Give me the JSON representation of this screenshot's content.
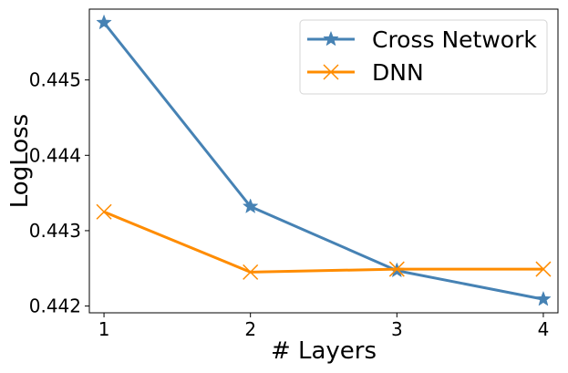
{
  "chart_data": {
    "type": "line",
    "title": "",
    "xlabel": "# Layers",
    "ylabel": "LogLoss",
    "x": [
      1,
      2,
      3,
      4
    ],
    "xlim": [
      0.9,
      4.1
    ],
    "ylim": [
      0.44191,
      0.44594
    ],
    "x_ticks": [
      1,
      2,
      3,
      4
    ],
    "x_tick_labels": [
      "1",
      "2",
      "3",
      "4"
    ],
    "y_ticks": [
      0.442,
      0.443,
      0.444,
      0.445
    ],
    "y_tick_labels": [
      "0.442",
      "0.443",
      "0.444",
      "0.445"
    ],
    "grid": false,
    "legend_position": "top-right",
    "series": [
      {
        "name": "Cross Network",
        "values": [
          0.44576,
          0.44332,
          0.44247,
          0.44209
        ],
        "color": "#4682b4",
        "marker": "star"
      },
      {
        "name": "DNN",
        "values": [
          0.44325,
          0.44245,
          0.44249,
          0.44249
        ],
        "color": "#ff8c00",
        "marker": "x"
      }
    ]
  }
}
